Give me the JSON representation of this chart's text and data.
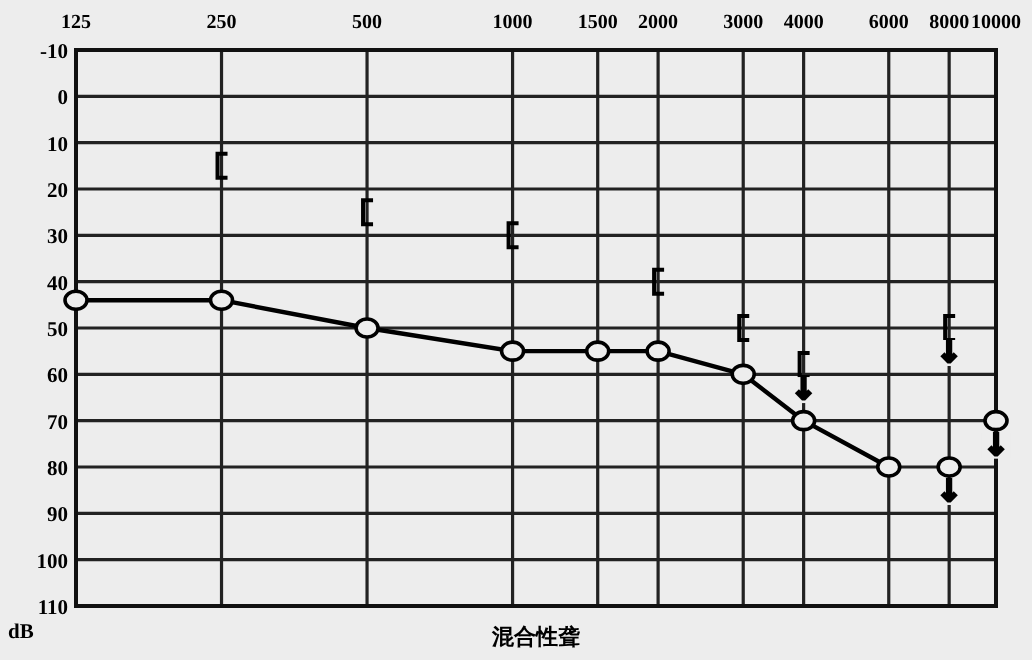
{
  "chart_data": {
    "type": "line",
    "xlabel": "混合性聋",
    "ylabel": "dB",
    "log": "x",
    "grid": true,
    "xlim": [
      125,
      10000
    ],
    "xticks": [
      125,
      250,
      500,
      1000,
      1500,
      2000,
      3000,
      4000,
      6000,
      8000,
      10000
    ],
    "ylim": [
      110,
      -10
    ],
    "yticks": [
      -10,
      0,
      10,
      20,
      30,
      40,
      50,
      60,
      70,
      80,
      90,
      100,
      110
    ],
    "series": [
      {
        "marker": "circle",
        "color": "#000000",
        "x": [
          125,
          250,
          500,
          1000,
          1500,
          2000,
          3000,
          4000,
          6000
        ],
        "values": [
          44,
          44,
          50,
          55,
          55,
          55,
          60,
          70,
          80
        ]
      },
      {
        "type": "scatter",
        "marker": "circle",
        "color": "#000000",
        "x": [
          8000,
          10000
        ],
        "values": [
          80,
          70
        ]
      },
      {
        "type": "scatter",
        "color": "#000000",
        "x": [
          250,
          500,
          1000,
          2000,
          3000,
          4000,
          8000
        ],
        "values": [
          15,
          25,
          30,
          40,
          50,
          58,
          50
        ]
      }
    ],
    "annotations": [
      {
        "text": "↓",
        "x": 4000,
        "y": 58
      },
      {
        "text": "↓",
        "x": 8000,
        "y": 50
      },
      {
        "text": "↓",
        "x": 8000,
        "y": 80
      },
      {
        "text": "↓",
        "x": 10000,
        "y": 70
      }
    ]
  }
}
